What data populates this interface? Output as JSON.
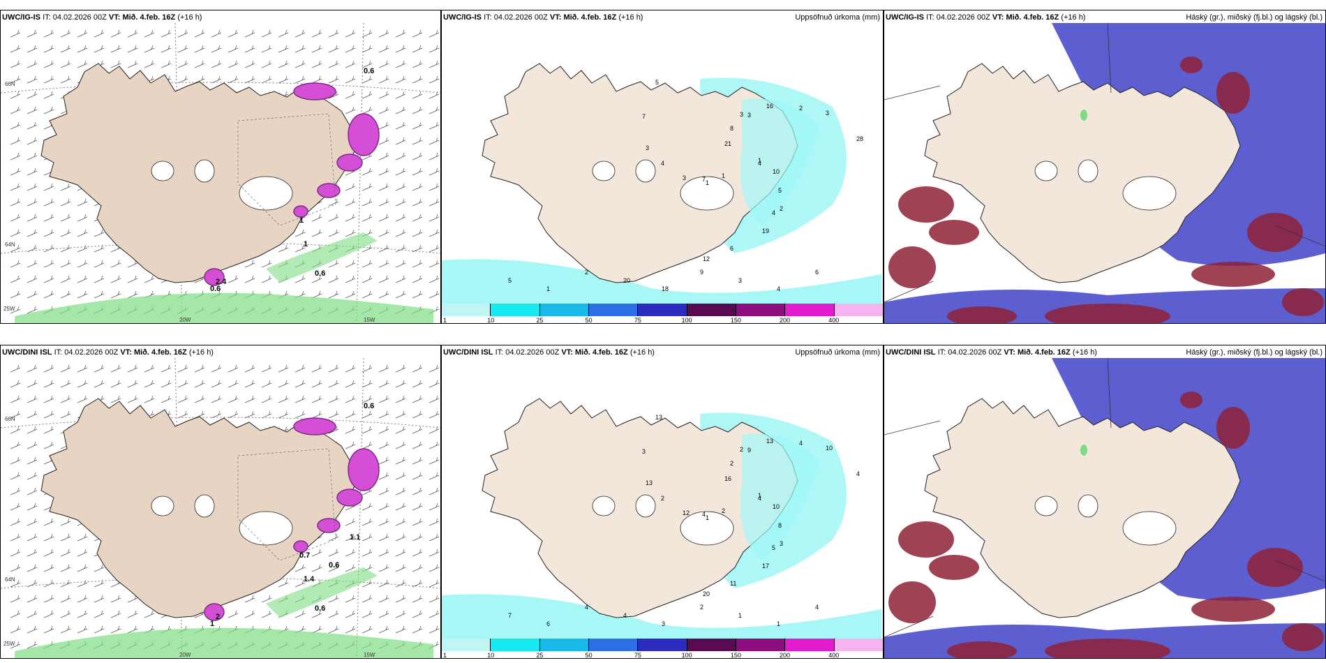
{
  "colors": {
    "land": "#f3e6da",
    "land_col1": "#e7d4c2",
    "precip_pink": "#d44fd6",
    "precip_purple": "#7b2b82",
    "green": "#7fdc84",
    "cyan": "#9ff6f6",
    "blue_cloud": "#4b4ecb",
    "red_cloud": "#8e2136"
  },
  "rows": [
    {
      "model": "UWC/IG-IS",
      "it_label": "IT:",
      "it_value": "04.02.2026 00Z",
      "vt_label": "VT:",
      "vt_value": "Mið. 4.feb. 16Z",
      "lead": "(+16 h)",
      "col2_title": "Uppsöfnuð úrkoma (mm)",
      "col3_title": "Háský (gr.), miðský (fj.bl.) og lágský (bl.)",
      "col1_labels": [
        "0.6",
        "0.6",
        "2.4",
        "0.6",
        "1",
        "1"
      ],
      "col1_axis": [
        "66N",
        "64N",
        "25W",
        "20W",
        "15W"
      ],
      "col2_values": [
        "1",
        "1",
        "3",
        "2",
        "3",
        "3",
        "12",
        "21",
        "10",
        "3",
        "16",
        "19",
        "7",
        "28",
        "1",
        "8",
        "5",
        "4",
        "2",
        "6",
        "5",
        "4",
        "7",
        "3",
        "4",
        "5",
        "1",
        "2",
        "20",
        "18",
        "9",
        "3",
        "4",
        "6"
      ]
    },
    {
      "model": "UWC/DINI ISL",
      "it_label": "IT:",
      "it_value": "04.02.2026 00Z",
      "vt_label": "VT:",
      "vt_value": "Mið. 4.feb. 16Z",
      "lead": "(+16 h)",
      "col2_title": "Uppsöfnuð úrkoma (mm)",
      "col3_title": "Háský (gr.), miðský (fj.bl.) og lágský (bl.)",
      "col1_labels": [
        "0.6",
        "0.6",
        "2",
        "1",
        "1.4",
        "0.7",
        "0.6",
        "1.1"
      ],
      "col1_axis": [
        "66N",
        "64N",
        "25W",
        "20W",
        "15W"
      ],
      "col2_values": [
        "1",
        "1",
        "2",
        "3",
        "13",
        "10",
        "20",
        "16",
        "10",
        "12",
        "13",
        "17",
        "3",
        "4",
        "2",
        "2",
        "8",
        "2",
        "4",
        "11",
        "13",
        "4",
        "4",
        "9",
        "5",
        "7",
        "6",
        "4",
        "4",
        "3",
        "2",
        "1",
        "1",
        "4"
      ]
    }
  ],
  "colorbar": {
    "ticks": [
      "1",
      "10",
      "25",
      "50",
      "75",
      "100",
      "150",
      "200",
      "400"
    ],
    "colors": [
      "#bff5f5",
      "#18e8f0",
      "#18b8e8",
      "#2c6ee6",
      "#2c2cc0",
      "#5a0a52",
      "#8e0e82",
      "#e01ccc",
      "#f4b4f0"
    ]
  }
}
